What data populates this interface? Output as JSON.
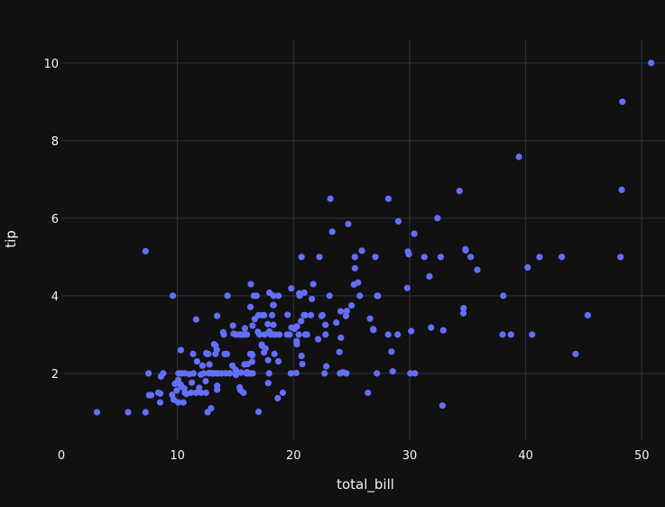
{
  "chart_data": {
    "type": "scatter",
    "xlabel": "total_bill",
    "ylabel": "tip",
    "xlim": [
      0,
      52
    ],
    "ylim": [
      0.3,
      10.6
    ],
    "x_ticks": [
      0,
      10,
      20,
      30,
      40,
      50
    ],
    "y_ticks": [
      2,
      4,
      6,
      8,
      10
    ],
    "grid": true,
    "colors": {
      "background": "#111111",
      "grid": "#283442",
      "marker": "#636efa",
      "text": "#f2f5fa"
    },
    "x": [
      16.99,
      10.34,
      21.01,
      23.68,
      24.59,
      25.29,
      8.77,
      26.88,
      15.04,
      14.78,
      10.27,
      35.26,
      15.42,
      18.43,
      14.83,
      21.58,
      10.33,
      16.29,
      16.97,
      20.65,
      17.92,
      20.29,
      15.77,
      39.42,
      19.82,
      17.81,
      13.37,
      12.69,
      21.7,
      19.65,
      9.55,
      18.35,
      15.06,
      20.69,
      17.78,
      24.06,
      16.31,
      16.93,
      18.69,
      31.27,
      16.04,
      17.46,
      13.94,
      9.68,
      30.4,
      18.29,
      22.23,
      32.4,
      28.55,
      18.04,
      12.54,
      10.29,
      34.81,
      9.94,
      25.56,
      19.49,
      38.01,
      26.41,
      11.24,
      48.27,
      20.29,
      13.81,
      11.02,
      18.29,
      17.59,
      20.08,
      16.45,
      3.07,
      20.23,
      15.01,
      12.02,
      17.07,
      26.86,
      25.28,
      14.73,
      10.51,
      17.92,
      27.2,
      22.76,
      17.29,
      19.44,
      16.66,
      10.07,
      32.68,
      15.98,
      34.83,
      13.03,
      18.28,
      24.71,
      21.16,
      28.97,
      22.49,
      5.75,
      16.32,
      22.75,
      40.17,
      27.28,
      12.03,
      21.01,
      12.46,
      11.35,
      15.38,
      44.3,
      22.42,
      20.92,
      15.36,
      20.49,
      25.21,
      18.24,
      14.31,
      14.0,
      7.25,
      38.07,
      23.95,
      25.71,
      17.31,
      29.93,
      10.65,
      12.43,
      24.08,
      11.69,
      13.42,
      14.26,
      15.95,
      12.48,
      29.8,
      8.52,
      14.52,
      11.38,
      22.82,
      19.08,
      20.27,
      11.17,
      12.26,
      18.26,
      8.51,
      10.33,
      14.15,
      16.0,
      13.16,
      17.47,
      34.3,
      41.19,
      27.05,
      16.43,
      8.35,
      18.64,
      11.87,
      9.78,
      7.51,
      14.07,
      13.13,
      17.26,
      24.55,
      19.77,
      29.85,
      48.17,
      25.0,
      13.39,
      16.49,
      21.5,
      12.66,
      16.21,
      13.81,
      17.51,
      24.52,
      20.76,
      31.71,
      10.59,
      10.63,
      50.81,
      15.81,
      7.25,
      31.85,
      16.82,
      32.9,
      17.89,
      14.48,
      9.6,
      34.63,
      34.65,
      23.33,
      45.35,
      23.17,
      40.55,
      20.69,
      20.9,
      30.46,
      18.15,
      23.1,
      15.69,
      19.81,
      28.44,
      15.48,
      16.58,
      7.56,
      10.34,
      43.11,
      13.0,
      13.51,
      18.71,
      12.74,
      13.0,
      16.4,
      20.53,
      16.47,
      26.59,
      38.73,
      24.27,
      12.76,
      30.06,
      25.89,
      48.33,
      13.27,
      28.17,
      12.9,
      28.15,
      11.59,
      7.74,
      30.14,
      12.16,
      13.42,
      8.58,
      15.98,
      13.42,
      16.27,
      10.09,
      20.45,
      13.28,
      22.12,
      24.01,
      15.69,
      11.61,
      10.77,
      15.53,
      10.07,
      12.6,
      32.83,
      35.83,
      29.03,
      27.18,
      22.67,
      17.82,
      18.78
    ],
    "y": [
      1.01,
      1.66,
      3.5,
      3.31,
      3.61,
      4.71,
      2.0,
      3.12,
      1.96,
      3.23,
      1.71,
      5.0,
      1.57,
      3.0,
      3.02,
      3.92,
      1.67,
      3.71,
      3.5,
      3.35,
      4.08,
      2.75,
      2.23,
      7.58,
      3.18,
      2.34,
      2.0,
      2.0,
      4.3,
      3.0,
      1.45,
      2.5,
      3.0,
      2.45,
      3.27,
      3.6,
      2.0,
      3.07,
      2.31,
      5.0,
      2.24,
      2.54,
      3.06,
      1.32,
      5.6,
      3.0,
      5.0,
      6.0,
      2.05,
      3.0,
      2.5,
      2.6,
      5.2,
      1.56,
      4.34,
      3.51,
      3.0,
      1.5,
      1.76,
      6.73,
      3.21,
      2.0,
      1.98,
      3.76,
      2.64,
      3.15,
      2.47,
      1.0,
      2.01,
      2.09,
      1.97,
      3.0,
      3.14,
      5.0,
      2.2,
      1.25,
      3.08,
      4.0,
      3.0,
      2.71,
      3.0,
      3.4,
      1.83,
      5.0,
      2.03,
      5.17,
      2.0,
      4.0,
      5.85,
      3.0,
      3.0,
      3.5,
      1.0,
      4.3,
      3.25,
      4.73,
      4.0,
      1.5,
      3.0,
      1.5,
      2.5,
      3.0,
      2.5,
      3.48,
      4.08,
      1.64,
      4.06,
      4.29,
      3.76,
      4.0,
      3.0,
      1.0,
      4.0,
      2.55,
      4.0,
      3.5,
      5.07,
      1.5,
      1.8,
      2.92,
      2.31,
      1.68,
      2.5,
      2.0,
      2.52,
      4.2,
      1.48,
      2.0,
      2.0,
      2.18,
      1.5,
      2.83,
      1.5,
      2.0,
      3.25,
      1.25,
      2.0,
      2.0,
      2.0,
      2.75,
      3.5,
      6.7,
      5.0,
      5.0,
      2.3,
      1.5,
      1.36,
      1.63,
      1.73,
      2.0,
      2.5,
      2.0,
      2.74,
      2.0,
      2.0,
      5.14,
      5.0,
      3.75,
      2.61,
      2.0,
      3.5,
      2.5,
      2.0,
      2.0,
      3.0,
      3.48,
      2.24,
      4.5,
      1.61,
      2.0,
      10.0,
      3.16,
      5.15,
      3.18,
      4.0,
      3.11,
      2.0,
      2.0,
      4.0,
      3.55,
      3.68,
      5.65,
      3.5,
      6.5,
      3.0,
      5.0,
      3.5,
      2.0,
      3.5,
      4.0,
      1.5,
      4.19,
      2.56,
      2.02,
      4.0,
      1.44,
      2.0,
      5.0,
      2.0,
      2.0,
      4.0,
      2.01,
      2.0,
      2.5,
      4.0,
      3.23,
      3.41,
      3.0,
      2.03,
      2.23,
      2.0,
      5.16,
      9.0,
      2.5,
      6.5,
      1.1,
      3.0,
      1.5,
      1.44,
      3.09,
      2.2,
      3.48,
      1.92,
      3.0,
      1.58,
      2.5,
      2.0,
      3.0,
      2.72,
      2.88,
      2.0,
      3.0,
      3.39,
      1.47,
      3.0,
      1.25,
      1.0,
      1.17,
      4.67,
      5.92,
      2.0,
      2.0,
      1.75,
      3.0
    ]
  }
}
